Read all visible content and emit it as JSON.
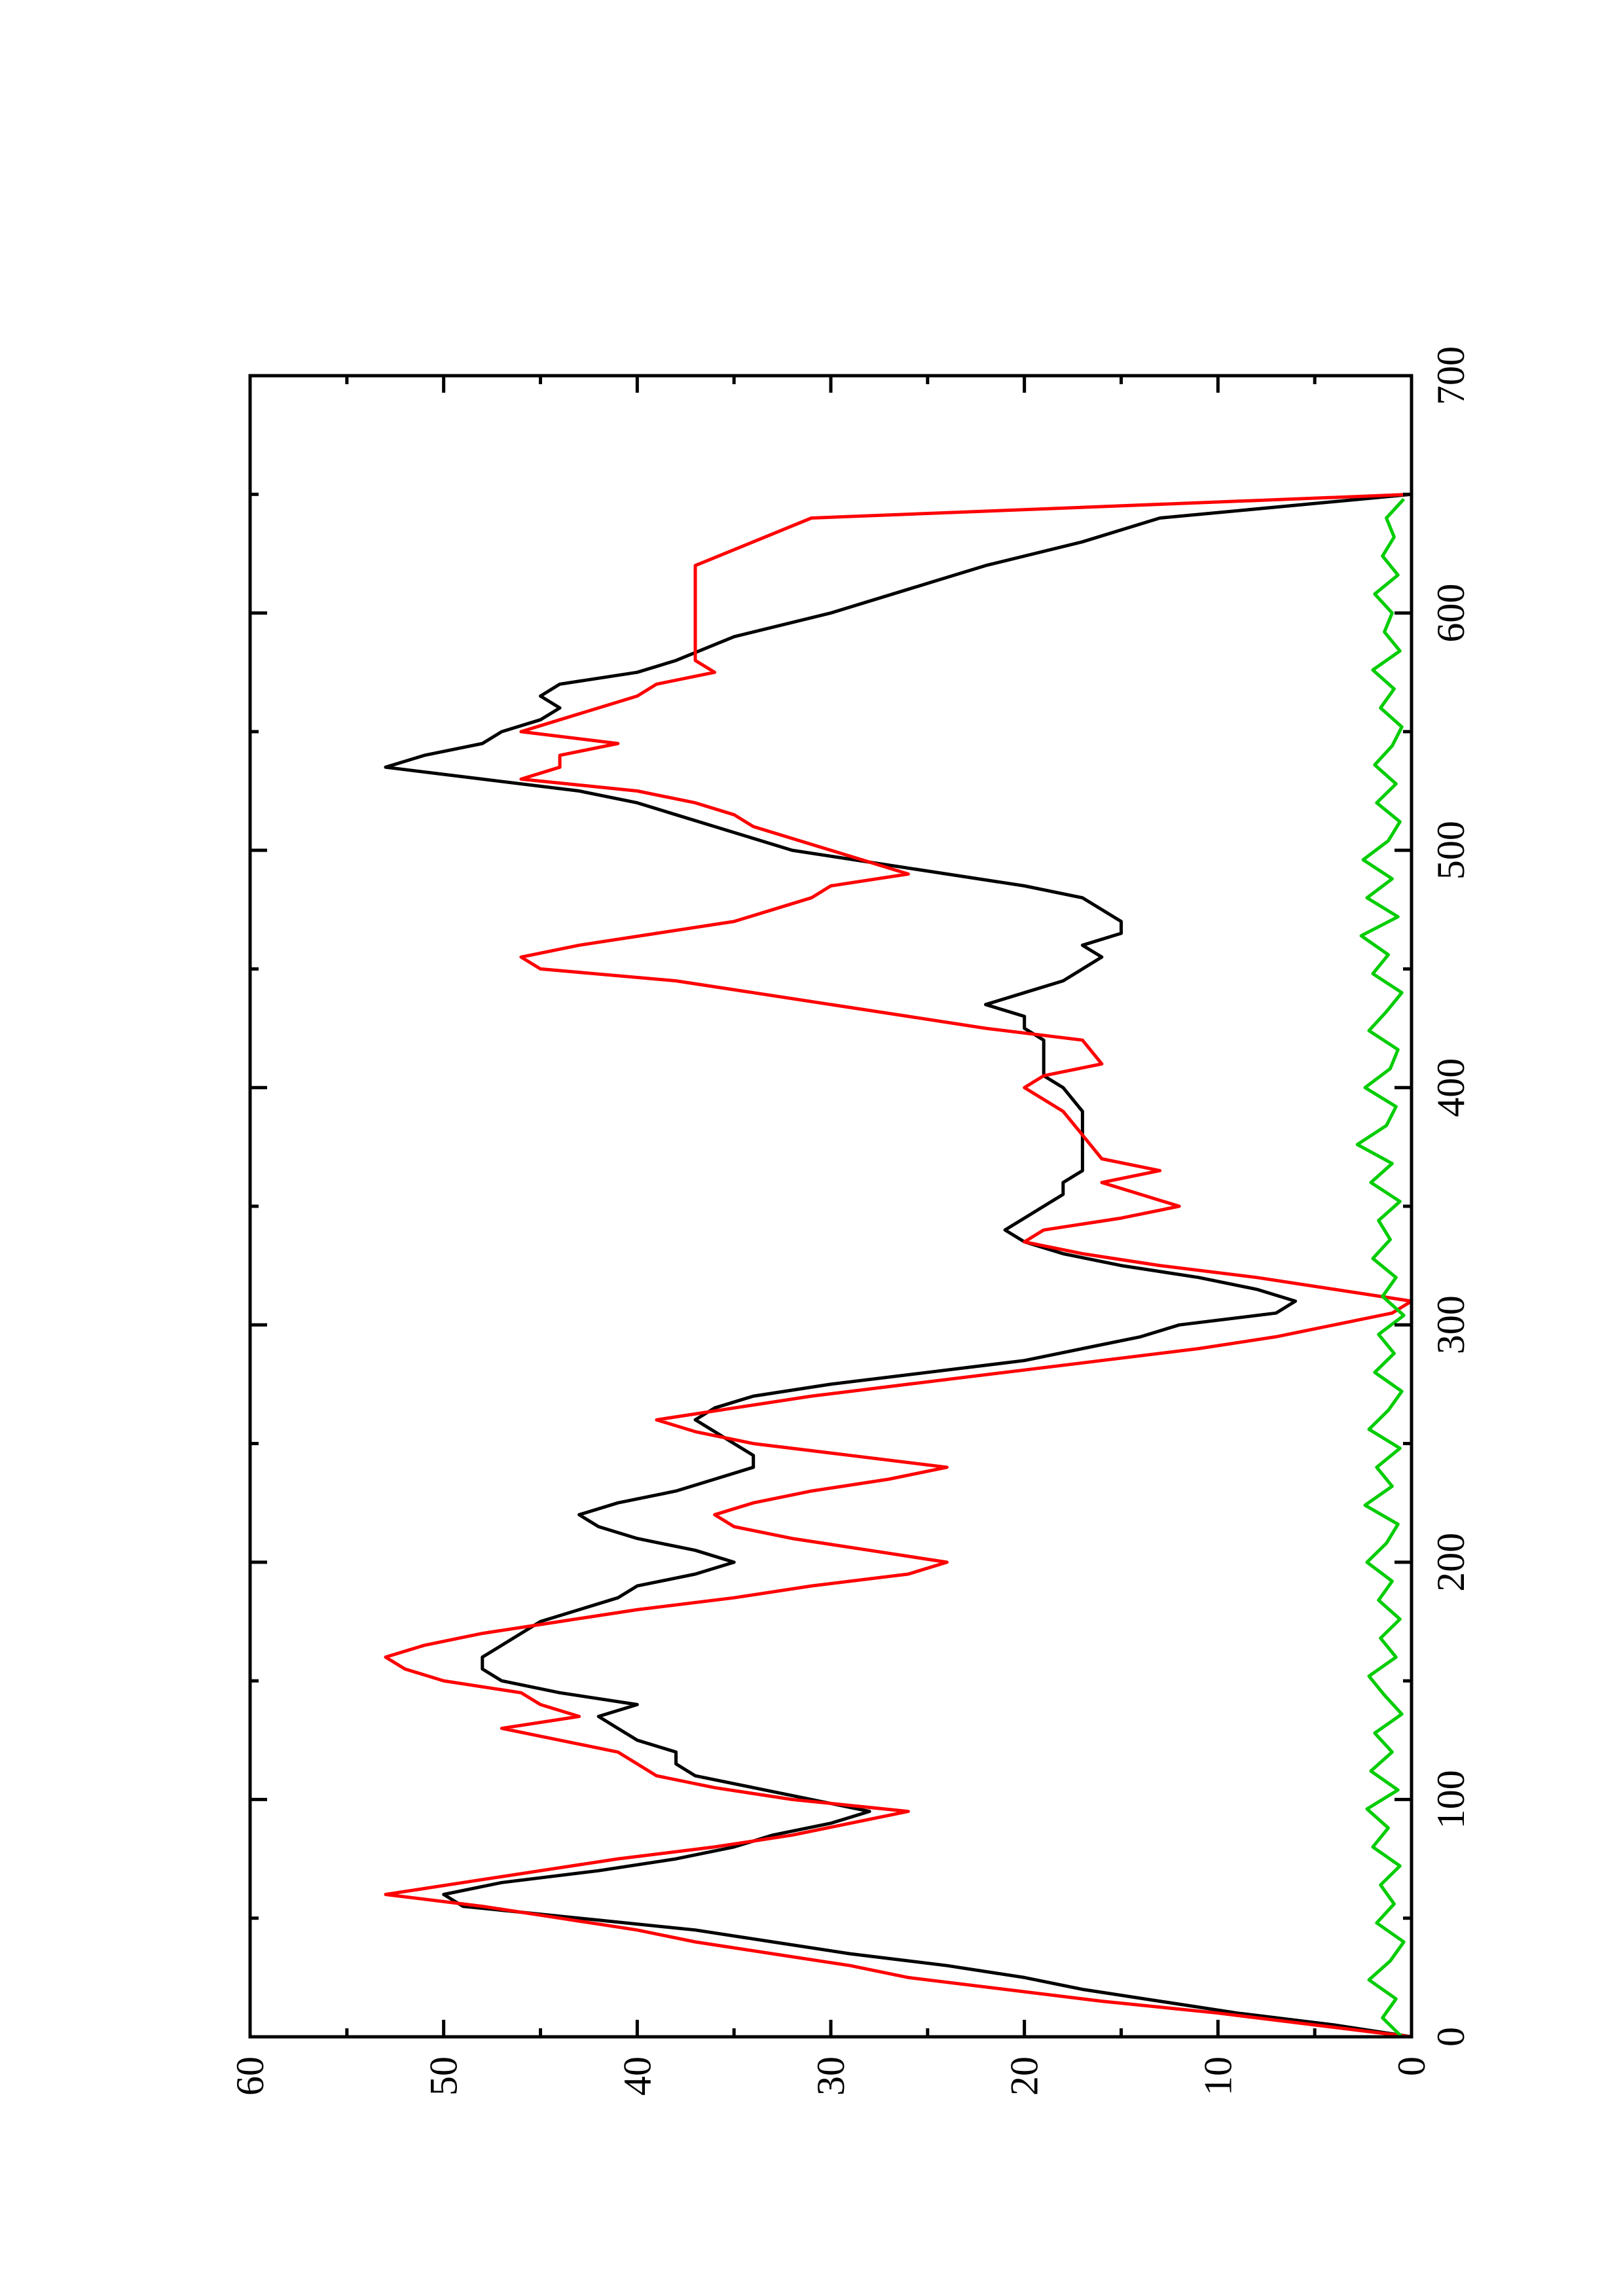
{
  "chart_data": {
    "type": "line",
    "orientation": "rotated-90-ccw",
    "title": "",
    "xlabel": "",
    "ylabel": "",
    "xlim": [
      0,
      700
    ],
    "ylim": [
      0,
      60
    ],
    "x_ticks": [
      0,
      100,
      200,
      300,
      400,
      500,
      600,
      700
    ],
    "x_tick_labels": [
      "0",
      "100",
      "200",
      "300",
      "400",
      "500",
      "600",
      "700"
    ],
    "y_ticks": [
      0,
      10,
      20,
      30,
      40,
      50,
      60
    ],
    "y_tick_labels": [
      "0",
      "10",
      "20",
      "30",
      "40",
      "50",
      "60"
    ],
    "x_minor_ticks": [
      50,
      150,
      250,
      350,
      450,
      550,
      650
    ],
    "y_minor_ticks": [
      5,
      15,
      25,
      35,
      45,
      55
    ],
    "grid": false,
    "legend": "none",
    "series": [
      {
        "color": "#000000",
        "x": [
          0,
          5,
          10,
          15,
          20,
          25,
          30,
          35,
          40,
          45,
          50,
          55,
          60,
          65,
          70,
          75,
          80,
          85,
          90,
          95,
          100,
          105,
          110,
          115,
          120,
          125,
          130,
          135,
          140,
          145,
          150,
          155,
          160,
          165,
          170,
          175,
          180,
          185,
          190,
          195,
          200,
          205,
          210,
          215,
          220,
          225,
          230,
          235,
          240,
          245,
          250,
          255,
          260,
          265,
          270,
          275,
          280,
          285,
          290,
          295,
          300,
          305,
          310,
          315,
          320,
          325,
          330,
          335,
          340,
          345,
          350,
          355,
          360,
          365,
          370,
          380,
          390,
          400,
          405,
          410,
          420,
          425,
          430,
          435,
          440,
          445,
          450,
          455,
          460,
          465,
          470,
          475,
          480,
          485,
          490,
          500,
          510,
          515,
          520,
          525,
          530,
          535,
          540,
          545,
          550,
          555,
          560,
          565,
          570,
          575,
          580,
          590,
          600,
          610,
          620,
          630,
          640,
          650
        ],
        "y": [
          0,
          4,
          9,
          13,
          17,
          20,
          24,
          29,
          33,
          37,
          43,
          49,
          50,
          47,
          42,
          38,
          35,
          33,
          30,
          28,
          31,
          34,
          37,
          38,
          38,
          40,
          41,
          42,
          40,
          44,
          47,
          48,
          48,
          47,
          46,
          45,
          43,
          41,
          40,
          37,
          35,
          37,
          40,
          42,
          43,
          41,
          38,
          36,
          34,
          34,
          35,
          36,
          37,
          36,
          34,
          30,
          25,
          20,
          17,
          14,
          12,
          7,
          6,
          8,
          11,
          15,
          18,
          20,
          21,
          20,
          19,
          18,
          18,
          17,
          17,
          17,
          17,
          18,
          19,
          19,
          19,
          20,
          20,
          22,
          20,
          18,
          17,
          16,
          17,
          15,
          15,
          16,
          17,
          20,
          24,
          32,
          36,
          38,
          40,
          43,
          48,
          53,
          51,
          48,
          47,
          45,
          44,
          45,
          44,
          40,
          38,
          35,
          30,
          26,
          22,
          17,
          13,
          0
        ]
      },
      {
        "color": "#ff0000",
        "x": [
          0,
          5,
          10,
          15,
          20,
          25,
          30,
          35,
          40,
          45,
          50,
          55,
          60,
          65,
          70,
          75,
          80,
          85,
          90,
          95,
          100,
          105,
          110,
          115,
          120,
          125,
          130,
          135,
          140,
          145,
          150,
          155,
          160,
          165,
          170,
          175,
          180,
          185,
          190,
          195,
          200,
          205,
          210,
          215,
          220,
          225,
          230,
          235,
          240,
          245,
          250,
          255,
          260,
          265,
          270,
          275,
          280,
          285,
          290,
          295,
          300,
          305,
          310,
          315,
          320,
          325,
          330,
          335,
          340,
          345,
          350,
          355,
          360,
          365,
          370,
          380,
          390,
          400,
          405,
          410,
          420,
          425,
          430,
          435,
          440,
          445,
          450,
          455,
          460,
          465,
          470,
          475,
          480,
          485,
          490,
          500,
          510,
          515,
          520,
          525,
          530,
          535,
          540,
          545,
          550,
          555,
          560,
          565,
          570,
          575,
          580,
          590,
          600,
          610,
          620,
          630,
          640,
          650
        ],
        "y": [
          0,
          5,
          10,
          16,
          21,
          26,
          29,
          33,
          37,
          40,
          44,
          48,
          53,
          49,
          45,
          41,
          36,
          32,
          29,
          26,
          32,
          36,
          39,
          40,
          41,
          44,
          47,
          43,
          45,
          46,
          50,
          52,
          53,
          51,
          48,
          44,
          40,
          35,
          31,
          26,
          24,
          28,
          32,
          35,
          36,
          34,
          31,
          27,
          24,
          29,
          34,
          37,
          39,
          35,
          31,
          26,
          21,
          16,
          11,
          7,
          4,
          1,
          0,
          4,
          8,
          13,
          17,
          20,
          19,
          15,
          12,
          14,
          16,
          13,
          16,
          17,
          18,
          20,
          19,
          16,
          17,
          22,
          26,
          30,
          34,
          38,
          45,
          46,
          43,
          39,
          35,
          33,
          31,
          30,
          26,
          30,
          34,
          35,
          37,
          40,
          46,
          44,
          44,
          41,
          46,
          44,
          42,
          40,
          39,
          36,
          37,
          37,
          37,
          37,
          37,
          34,
          31,
          0
        ]
      },
      {
        "color": "#00cc00",
        "x": [
          0,
          8,
          16,
          24,
          32,
          40,
          48,
          56,
          64,
          72,
          80,
          88,
          96,
          104,
          112,
          120,
          128,
          136,
          144,
          152,
          160,
          168,
          176,
          184,
          192,
          200,
          208,
          216,
          224,
          232,
          240,
          248,
          256,
          264,
          272,
          280,
          288,
          296,
          304,
          312,
          320,
          328,
          336,
          344,
          352,
          360,
          368,
          376,
          384,
          392,
          400,
          408,
          416,
          424,
          432,
          440,
          448,
          456,
          464,
          472,
          480,
          488,
          496,
          504,
          512,
          520,
          528,
          536,
          544,
          552,
          560,
          568,
          576,
          584,
          592,
          600,
          608,
          616,
          624,
          632,
          640,
          648
        ],
        "y": [
          0.5,
          1.5,
          0.8,
          2.2,
          1.1,
          0.4,
          1.8,
          0.9,
          1.6,
          0.6,
          2.0,
          1.2,
          2.3,
          0.7,
          2.1,
          1.0,
          1.9,
          0.5,
          1.4,
          2.2,
          0.8,
          1.6,
          0.6,
          1.7,
          1.0,
          2.3,
          1.3,
          0.7,
          2.4,
          1.0,
          1.8,
          0.6,
          2.2,
          1.2,
          0.5,
          1.9,
          0.9,
          1.7,
          0.4,
          1.5,
          0.8,
          2.0,
          1.1,
          1.7,
          0.6,
          2.1,
          1.0,
          2.8,
          1.3,
          0.8,
          2.4,
          1.1,
          0.7,
          2.2,
          1.3,
          0.5,
          2.0,
          1.2,
          2.6,
          0.7,
          2.3,
          1.0,
          2.5,
          1.2,
          0.6,
          1.8,
          0.8,
          1.9,
          1.0,
          0.5,
          1.6,
          0.9,
          2.0,
          0.6,
          1.4,
          1.0,
          1.9,
          0.7,
          1.5,
          0.9,
          1.3,
          0.4
        ]
      }
    ]
  }
}
